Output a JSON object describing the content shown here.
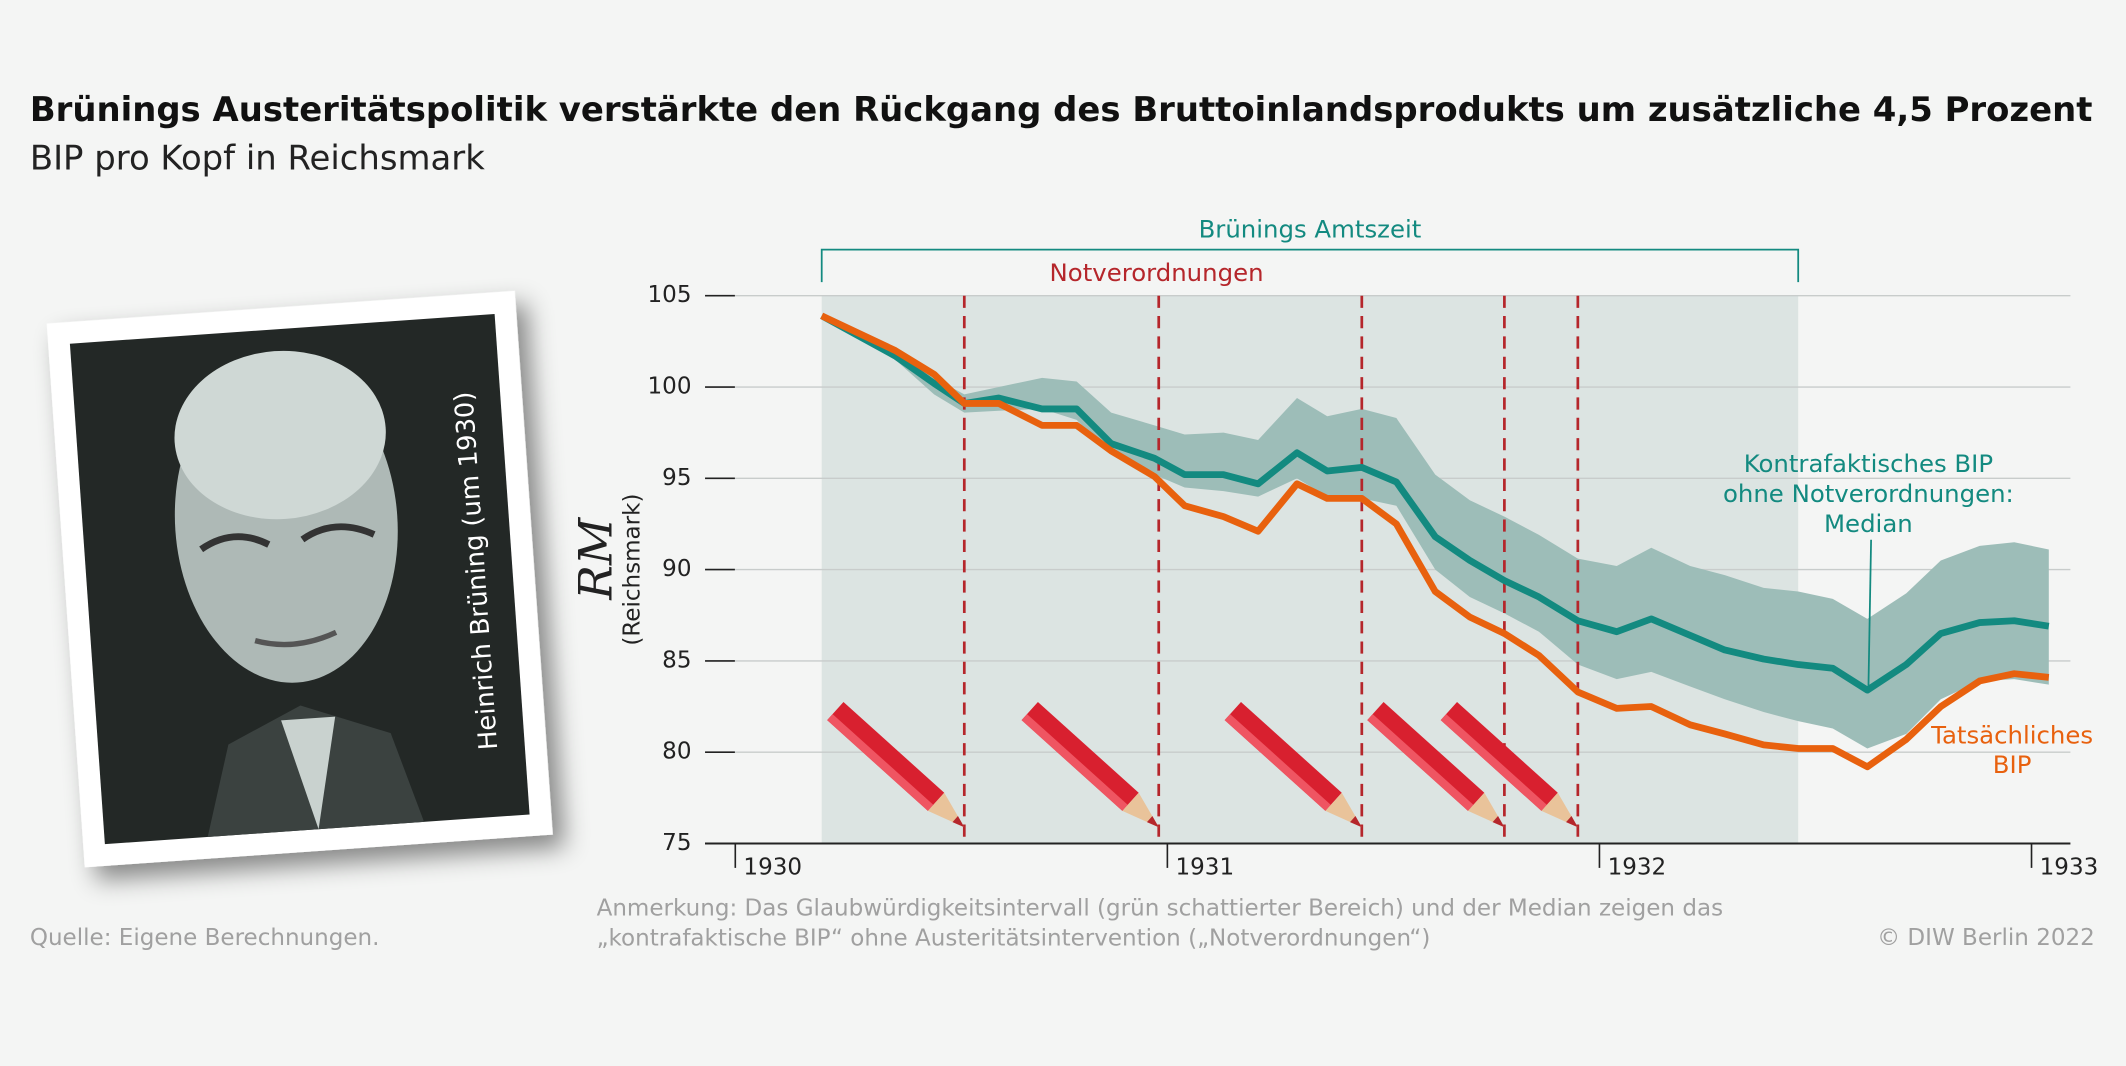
{
  "chart_data": {
    "type": "line",
    "title": "Brünings Austeritätspolitik verstärkte den Rückgang des Bruttoinlandsprodukts um zusätzliche 4,5 Prozent",
    "subtitle": "BIP pro Kopf in Reichsmark",
    "ylabel": "RM",
    "ylabel_sub": "(Reichsmark)",
    "x": [
      1930.2,
      1930.37,
      1930.46,
      1930.53,
      1930.61,
      1930.71,
      1930.79,
      1930.87,
      1930.97,
      1931.04,
      1931.13,
      1931.21,
      1931.3,
      1931.37,
      1931.45,
      1931.53,
      1931.62,
      1931.7,
      1931.78,
      1931.86,
      1931.95,
      1932.04,
      1932.12,
      1932.21,
      1932.29,
      1932.38,
      1932.46,
      1932.54,
      1932.62,
      1932.71,
      1932.79,
      1932.88,
      1932.96,
      1933.04
    ],
    "series": [
      {
        "name": "Kontrafaktisches BIP\nohne Notverordnungen:\nMedian",
        "color": "#138a80",
        "values": [
          103.9,
          101.7,
          100.2,
          99.1,
          99.4,
          98.8,
          98.8,
          96.9,
          96.1,
          95.2,
          95.2,
          94.7,
          96.4,
          95.4,
          95.6,
          94.8,
          91.8,
          90.5,
          89.4,
          88.5,
          87.2,
          86.6,
          87.3,
          86.4,
          85.6,
          85.1,
          84.8,
          84.6,
          83.4,
          84.8,
          86.5,
          87.1,
          87.2,
          86.9
        ]
      },
      {
        "name": "Tatsächliches\nBIP",
        "color": "#e8610e",
        "values": [
          103.9,
          102.0,
          100.7,
          99.1,
          99.1,
          97.9,
          97.9,
          96.5,
          95.1,
          93.5,
          92.9,
          92.1,
          94.7,
          93.9,
          93.9,
          92.5,
          88.8,
          87.4,
          86.5,
          85.3,
          83.3,
          82.4,
          82.5,
          81.5,
          81.0,
          80.4,
          80.2,
          80.2,
          79.2,
          80.7,
          82.5,
          83.9,
          84.3,
          84.1
        ]
      }
    ],
    "band": {
      "color": "#9dbdb8",
      "upper": [
        103.9,
        101.8,
        100.5,
        99.6,
        100.0,
        100.5,
        100.3,
        98.6,
        97.9,
        97.4,
        97.5,
        97.1,
        99.4,
        98.4,
        98.8,
        98.3,
        95.2,
        93.8,
        92.9,
        91.9,
        90.6,
        90.2,
        91.2,
        90.2,
        89.7,
        89.0,
        88.8,
        88.4,
        87.3,
        88.7,
        90.5,
        91.3,
        91.5,
        91.1
      ],
      "lower": [
        103.9,
        101.5,
        99.6,
        98.6,
        98.7,
        98.8,
        98.2,
        96.3,
        95.2,
        94.5,
        94.3,
        94.0,
        95.0,
        94.0,
        93.9,
        93.5,
        90.0,
        88.5,
        87.6,
        86.6,
        84.8,
        84.0,
        84.4,
        83.6,
        82.9,
        82.2,
        81.7,
        81.3,
        80.2,
        81.0,
        82.9,
        83.9,
        84.0,
        83.7
      ]
    },
    "period": {
      "label": "Brünings Amtszeit",
      "range": [
        1930.2,
        1932.46
      ],
      "color": "#dce4e2"
    },
    "events": {
      "label": "Notverordnungen",
      "x": [
        1930.53,
        1930.98,
        1931.45,
        1931.78,
        1931.95
      ],
      "color": "#b5262b"
    },
    "xlim": [
      1929.93,
      1933.09
    ],
    "xticks": [
      1930,
      1931,
      1932,
      1933
    ],
    "ylim": [
      75,
      105
    ],
    "yticks": [
      75,
      80,
      85,
      90,
      95,
      100,
      105
    ],
    "grid": true,
    "photo_caption": "Heinrich Brüning (um 1930)",
    "note": "Anmerkung: Das Glaubwürdigkeitsintervall (grün schattierter Bereich) und der Median zeigen das\n„kontrafaktische BIP“ ohne Austeritätsintervention („Notverordnungen“)",
    "source": "Quelle: Eigene Berechnungen.",
    "copyright": "© DIW Berlin 2022"
  }
}
